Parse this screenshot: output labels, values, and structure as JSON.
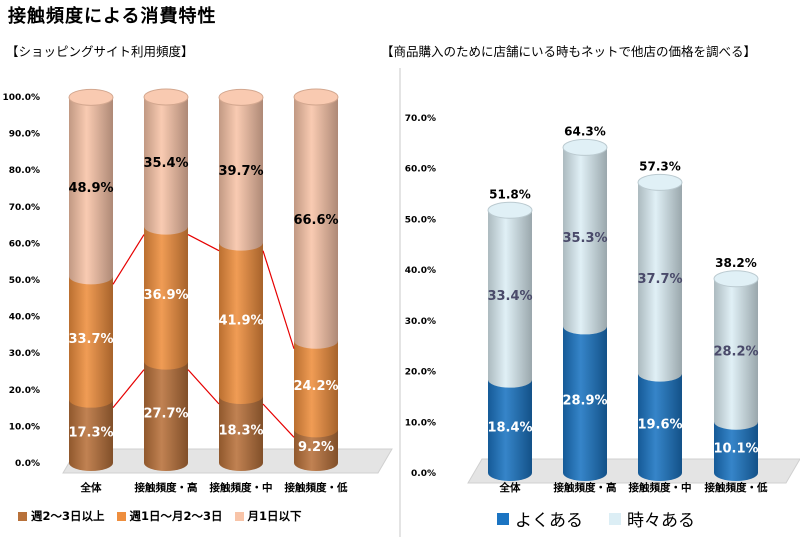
{
  "title": "接触頻度による消費特性",
  "chart_data": [
    {
      "type": "bar",
      "subtitle": "【ショッピングサイト利用頻度】",
      "stacked": true,
      "categories": [
        "全体",
        "接触頻度・高",
        "接触頻度・中",
        "接触頻度・低"
      ],
      "series": [
        {
          "name": "週2～3日以上",
          "values": [
            17.3,
            27.7,
            18.3,
            9.2
          ],
          "labels": [
            "17.3%",
            "27.7%",
            "18.3%",
            "9.2%"
          ],
          "color": "#b8713a"
        },
        {
          "name": "週1日～月2～3日",
          "values": [
            33.7,
            36.9,
            41.9,
            24.2
          ],
          "labels": [
            "33.7%",
            "36.9%",
            "41.9%",
            "24.2%"
          ],
          "color": "#ee8e3e"
        },
        {
          "name": "月1日以下",
          "values": [
            48.9,
            35.4,
            39.7,
            66.6
          ],
          "labels": [
            "48.9%",
            "35.4%",
            "39.7%",
            "66.6%"
          ],
          "color": "#f8c4a8"
        }
      ],
      "ylim": [
        0,
        100
      ],
      "yticks": [
        "0.0%",
        "10.0%",
        "20.0%",
        "30.0%",
        "40.0%",
        "50.0%",
        "60.0%",
        "70.0%",
        "80.0%",
        "90.0%",
        "100.0%"
      ],
      "connector_color": "#e60000"
    },
    {
      "type": "bar",
      "subtitle": "【商品購入のために店舗にいる時もネットで他店の価格を調べる】",
      "stacked": true,
      "categories": [
        "全体",
        "接触頻度・高",
        "接触頻度・中",
        "接触頻度・低"
      ],
      "series": [
        {
          "name": "よくある",
          "values": [
            18.4,
            28.9,
            19.6,
            10.1
          ],
          "labels": [
            "18.4%",
            "28.9%",
            "19.6%",
            "10.1%"
          ],
          "color": "#1b74c2"
        },
        {
          "name": "時々ある",
          "values": [
            33.4,
            35.3,
            37.7,
            28.2
          ],
          "labels": [
            "33.4%",
            "35.3%",
            "37.7%",
            "28.2%"
          ],
          "color": "#dceef5"
        }
      ],
      "totals": [
        51.8,
        64.3,
        57.3,
        38.2
      ],
      "total_labels": [
        "51.8%",
        "64.3%",
        "57.3%",
        "38.2%"
      ],
      "ylim": [
        0,
        70
      ],
      "yticks": [
        "0.0%",
        "10.0%",
        "20.0%",
        "30.0%",
        "40.0%",
        "50.0%",
        "60.0%",
        "70.0%"
      ]
    }
  ]
}
